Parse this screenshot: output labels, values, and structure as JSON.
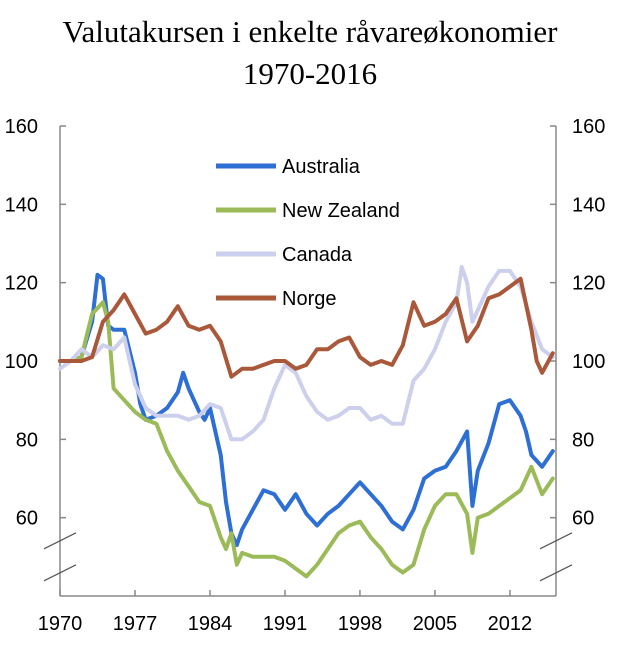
{
  "chart_data": {
    "type": "line",
    "title": "Valutakursen i enkelte råvareøkonomier",
    "subtitle": "1970-2016",
    "xlabel": "",
    "ylabel": "",
    "xlim": [
      1970,
      2016.3
    ],
    "ylim": [
      40,
      160
    ],
    "x_ticks": [
      "1970",
      "1977",
      "1984",
      "1991",
      "1998",
      "2005",
      "2012"
    ],
    "y_ticks": [
      "160",
      "140",
      "120",
      "100",
      "80",
      "60"
    ],
    "axis_break_y": 50,
    "grid": false,
    "legend_position": "top-left inside",
    "series": [
      {
        "name": "Australia",
        "color": "#2e6fd4",
        "x": [
          1970,
          1971,
          1972,
          1973,
          1973.5,
          1974,
          1974.5,
          1975,
          1976,
          1977,
          1977.5,
          1978,
          1979,
          1980,
          1981,
          1981.5,
          1982,
          1983,
          1983.5,
          1984,
          1985,
          1985.5,
          1986,
          1986.5,
          1987,
          1988,
          1989,
          1990,
          1991,
          1992,
          1993,
          1994,
          1995,
          1996,
          1997,
          1998,
          1999,
          2000,
          2001,
          2002,
          2003,
          2004,
          2005,
          2006,
          2007,
          2008,
          2008.5,
          2009,
          2010,
          2011,
          2012,
          2013,
          2013.5,
          2014,
          2015,
          2016
        ],
        "y": [
          100,
          100,
          101,
          110,
          122,
          121,
          109,
          108,
          108,
          97,
          89,
          85,
          86,
          88,
          92,
          97,
          93,
          87,
          85,
          88,
          76,
          64,
          56,
          53,
          57,
          62,
          67,
          66,
          62,
          66,
          61,
          58,
          61,
          63,
          66,
          69,
          66,
          63,
          59,
          57,
          62,
          70,
          72,
          73,
          77,
          82,
          63,
          72,
          79,
          89,
          90,
          86,
          82,
          76,
          73,
          77
        ]
      },
      {
        "name": "New Zealand",
        "color": "#9bbb59",
        "x": [
          1970,
          1971,
          1972,
          1973,
          1974,
          1974.5,
          1975,
          1976,
          1977,
          1978,
          1979,
          1980,
          1981,
          1982,
          1983,
          1984,
          1985,
          1985.5,
          1986,
          1986.5,
          1987,
          1988,
          1989,
          1990,
          1991,
          1992,
          1993,
          1994,
          1995,
          1996,
          1997,
          1998,
          1999,
          2000,
          2001,
          2002,
          2003,
          2004,
          2005,
          2006,
          2007,
          2008,
          2008.5,
          2009,
          2010,
          2011,
          2012,
          2013,
          2014,
          2015,
          2016
        ],
        "y": [
          100,
          100,
          101,
          112,
          115,
          110,
          93,
          90,
          87,
          85,
          84,
          77,
          72,
          68,
          64,
          63,
          55,
          52,
          56,
          48,
          51,
          50,
          50,
          50,
          49,
          47,
          45,
          48,
          52,
          56,
          58,
          59,
          55,
          52,
          48,
          46,
          48,
          57,
          63,
          66,
          66,
          61,
          51,
          60,
          61,
          63,
          65,
          67,
          73,
          66,
          70
        ]
      },
      {
        "name": "Canada",
        "color": "#cdd0ec",
        "x": [
          1970,
          1971,
          1972,
          1973,
          1974,
          1975,
          1976,
          1977,
          1978,
          1979,
          1980,
          1981,
          1982,
          1983,
          1984,
          1985,
          1986,
          1987,
          1988,
          1989,
          1990,
          1991,
          1992,
          1993,
          1994,
          1995,
          1996,
          1997,
          1998,
          1999,
          2000,
          2001,
          2002,
          2003,
          2004,
          2005,
          2006,
          2007,
          2007.5,
          2008,
          2008.5,
          2009,
          2010,
          2011,
          2012,
          2013,
          2014,
          2015,
          2016
        ],
        "y": [
          98,
          100,
          103,
          101,
          104,
          103,
          106,
          94,
          88,
          86,
          86,
          86,
          85,
          86,
          89,
          88,
          80,
          80,
          82,
          85,
          93,
          99,
          97,
          91,
          87,
          85,
          86,
          88,
          88,
          85,
          86,
          84,
          84,
          95,
          98,
          103,
          110,
          115,
          124,
          120,
          110,
          113,
          119,
          123,
          123,
          119,
          110,
          103,
          101
        ]
      },
      {
        "name": "Norge",
        "color": "#a9583a",
        "x": [
          1970,
          1971,
          1972,
          1973,
          1974,
          1975,
          1976,
          1977,
          1978,
          1979,
          1980,
          1981,
          1982,
          1983,
          1984,
          1985,
          1986,
          1987,
          1988,
          1989,
          1990,
          1991,
          1992,
          1993,
          1994,
          1995,
          1996,
          1997,
          1998,
          1999,
          2000,
          2001,
          2002,
          2003,
          2004,
          2005,
          2006,
          2007,
          2008,
          2009,
          2010,
          2011,
          2012,
          2013,
          2014,
          2014.5,
          2015,
          2016
        ],
        "y": [
          100,
          100,
          100,
          101,
          110,
          113,
          117,
          112,
          107,
          108,
          110,
          114,
          109,
          108,
          109,
          105,
          96,
          98,
          98,
          99,
          100,
          100,
          98,
          99,
          103,
          103,
          105,
          106,
          101,
          99,
          100,
          99,
          104,
          115,
          109,
          110,
          112,
          116,
          105,
          109,
          116,
          117,
          119,
          121,
          108,
          100,
          97,
          102
        ]
      }
    ]
  }
}
